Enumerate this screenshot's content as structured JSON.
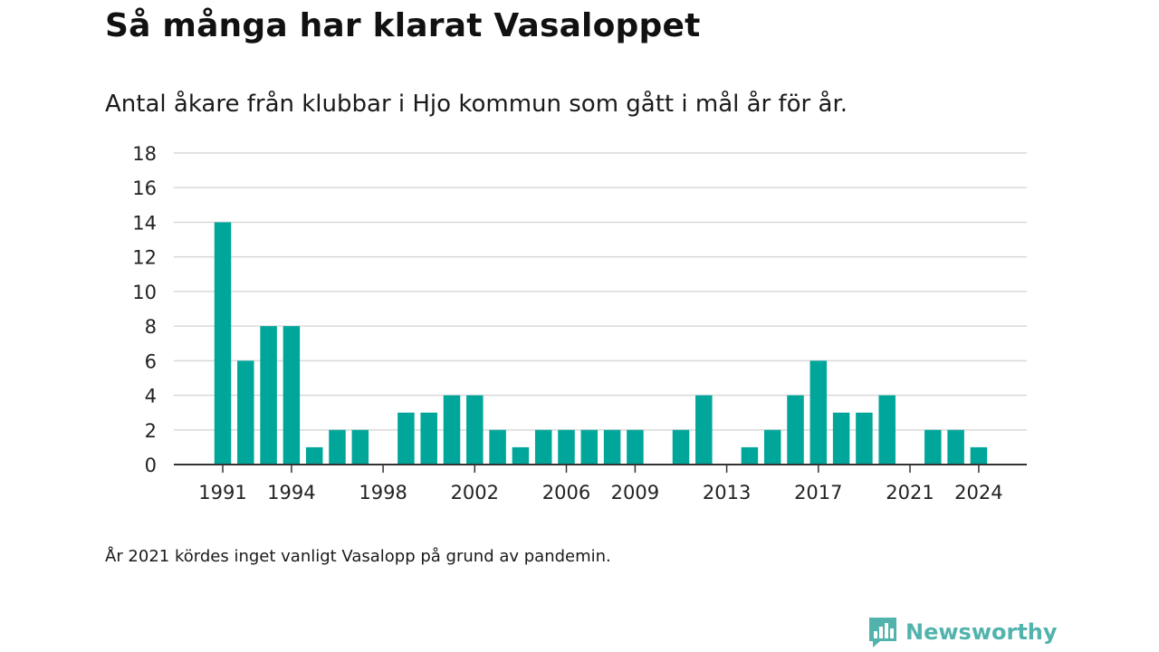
{
  "header": {
    "title": "Så många har klarat Vasaloppet",
    "subtitle": "Antal åkare från klubbar i Hjo kommun som gått i mål år för år."
  },
  "footnote": "År 2021 kördes inget vanligt Vasalopp på grund av pandemin.",
  "brand": {
    "name": "Newsworthy",
    "icon": "newsworthy-logo-icon",
    "color": "#52b3ad"
  },
  "colors": {
    "bar": "#00a69a",
    "grid": "#d9d9d9",
    "axis": "#333333"
  },
  "chart_data": {
    "type": "bar",
    "title": "Så många har klarat Vasaloppet",
    "xlabel": "",
    "ylabel": "",
    "ylim": [
      0,
      18
    ],
    "yticks": [
      0,
      2,
      4,
      6,
      8,
      10,
      12,
      14,
      16,
      18
    ],
    "xtick_labels": [
      "1991",
      "1994",
      "1998",
      "2002",
      "2006",
      "2009",
      "2013",
      "2017",
      "2021",
      "2024"
    ],
    "grid": true,
    "categories": [
      "1991",
      "1992",
      "1993",
      "1994",
      "1995",
      "1996",
      "1997",
      "1998",
      "1999",
      "2000",
      "2001",
      "2002",
      "2003",
      "2004",
      "2005",
      "2006",
      "2007",
      "2008",
      "2009",
      "2010",
      "2011",
      "2012",
      "2013",
      "2014",
      "2015",
      "2016",
      "2017",
      "2018",
      "2019",
      "2020",
      "2021",
      "2022",
      "2023",
      "2024"
    ],
    "values": [
      14,
      6,
      8,
      8,
      1,
      2,
      2,
      0,
      3,
      3,
      4,
      4,
      2,
      1,
      2,
      2,
      2,
      2,
      2,
      0,
      2,
      4,
      0,
      1,
      2,
      4,
      6,
      3,
      3,
      4,
      0,
      2,
      2,
      1
    ]
  }
}
